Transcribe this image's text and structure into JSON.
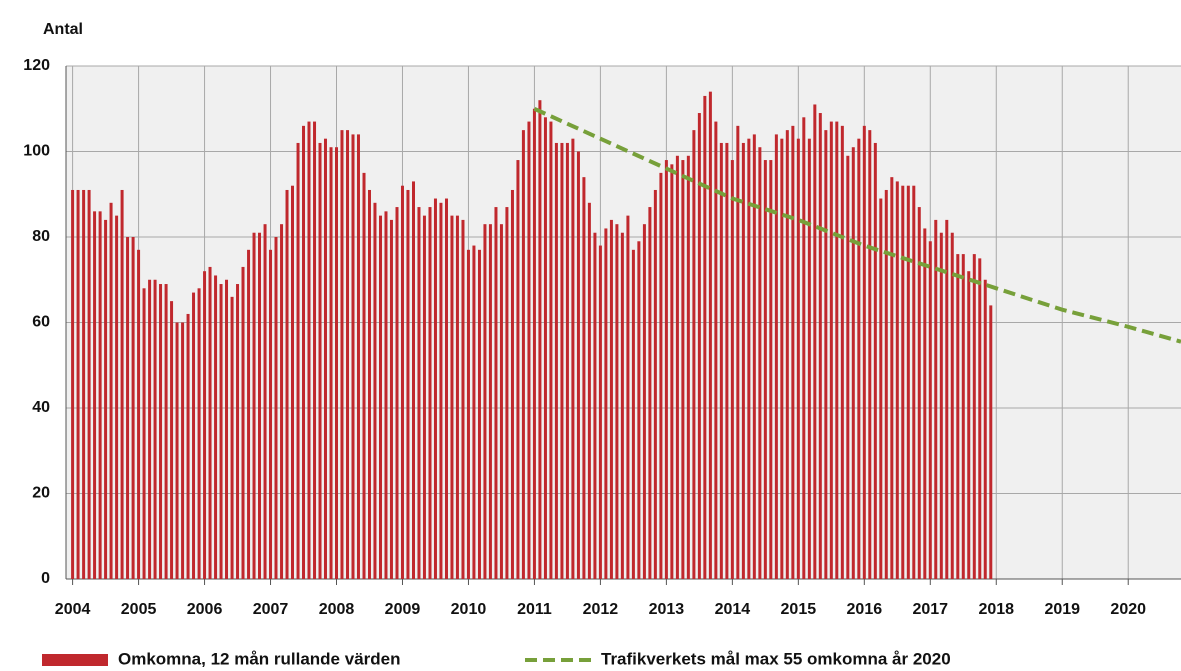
{
  "chart_data": {
    "type": "bar",
    "y_label": "Antal",
    "xlim": [
      2003.9,
      2020.8
    ],
    "xticks": [
      2004,
      2005,
      2006,
      2007,
      2008,
      2009,
      2010,
      2011,
      2012,
      2013,
      2014,
      2015,
      2016,
      2017,
      2018,
      2019,
      2020
    ],
    "ylim": [
      0,
      120
    ],
    "yticks": [
      0,
      20,
      40,
      60,
      80,
      100,
      120
    ],
    "grid": true,
    "legend": "bottom",
    "series": [
      {
        "name": "Omkomna, 12 mån rullande värden",
        "type": "bar",
        "color": "#c0282d",
        "x": [
          2004,
          2004.083,
          2004.167,
          2004.25,
          2004.333,
          2004.417,
          2004.5,
          2004.583,
          2004.667,
          2004.75,
          2004.833,
          2004.917,
          2005,
          2005.083,
          2005.167,
          2005.25,
          2005.333,
          2005.417,
          2005.5,
          2005.583,
          2005.667,
          2005.75,
          2005.833,
          2005.917,
          2006,
          2006.083,
          2006.167,
          2006.25,
          2006.333,
          2006.417,
          2006.5,
          2006.583,
          2006.667,
          2006.75,
          2006.833,
          2006.917,
          2007,
          2007.083,
          2007.167,
          2007.25,
          2007.333,
          2007.417,
          2007.5,
          2007.583,
          2007.667,
          2007.75,
          2007.833,
          2007.917,
          2008,
          2008.083,
          2008.167,
          2008.25,
          2008.333,
          2008.417,
          2008.5,
          2008.583,
          2008.667,
          2008.75,
          2008.833,
          2008.917,
          2009,
          2009.083,
          2009.167,
          2009.25,
          2009.333,
          2009.417,
          2009.5,
          2009.583,
          2009.667,
          2009.75,
          2009.833,
          2009.917,
          2010,
          2010.083,
          2010.167,
          2010.25,
          2010.333,
          2010.417,
          2010.5,
          2010.583,
          2010.667,
          2010.75,
          2010.833,
          2010.917,
          2011,
          2011.083,
          2011.167,
          2011.25,
          2011.333,
          2011.417,
          2011.5,
          2011.583,
          2011.667,
          2011.75,
          2011.833,
          2011.917,
          2012,
          2012.083,
          2012.167,
          2012.25,
          2012.333,
          2012.417,
          2012.5,
          2012.583,
          2012.667,
          2012.75,
          2012.833,
          2012.917,
          2013,
          2013.083,
          2013.167,
          2013.25,
          2013.333,
          2013.417,
          2013.5,
          2013.583,
          2013.667,
          2013.75,
          2013.833,
          2013.917,
          2014,
          2014.083,
          2014.167,
          2014.25,
          2014.333,
          2014.417,
          2014.5,
          2014.583,
          2014.667,
          2014.75,
          2014.833,
          2014.917,
          2015,
          2015.083,
          2015.167,
          2015.25,
          2015.333,
          2015.417,
          2015.5,
          2015.583,
          2015.667,
          2015.75,
          2015.833,
          2015.917,
          2016,
          2016.083,
          2016.167,
          2016.25,
          2016.333,
          2016.417,
          2016.5,
          2016.583,
          2016.667,
          2016.75,
          2016.833,
          2016.917,
          2017,
          2017.083,
          2017.167,
          2017.25,
          2017.333,
          2017.417,
          2017.5,
          2017.583,
          2017.667,
          2017.75,
          2017.833,
          2017.917
        ],
        "values": [
          91,
          91,
          91,
          91,
          86,
          86,
          84,
          88,
          85,
          91,
          80,
          80,
          77,
          68,
          70,
          70,
          69,
          69,
          65,
          60,
          60,
          62,
          67,
          68,
          72,
          73,
          71,
          69,
          70,
          66,
          69,
          73,
          77,
          81,
          81,
          83,
          77,
          80,
          83,
          91,
          92,
          102,
          106,
          107,
          107,
          102,
          103,
          101,
          101,
          105,
          105,
          104,
          104,
          95,
          91,
          88,
          85,
          86,
          84,
          87,
          92,
          91,
          93,
          87,
          85,
          87,
          89,
          88,
          89,
          85,
          85,
          84,
          77,
          78,
          77,
          83,
          83,
          87,
          83,
          87,
          91,
          98,
          105,
          107,
          110,
          112,
          108,
          107,
          102,
          102,
          102,
          103,
          100,
          94,
          88,
          81,
          78,
          82,
          84,
          83,
          81,
          85,
          77,
          79,
          83,
          87,
          91,
          95,
          98,
          97,
          99,
          98,
          99,
          105,
          109,
          113,
          114,
          107,
          102,
          102,
          98,
          106,
          102,
          103,
          104,
          101,
          98,
          98,
          104,
          103,
          105,
          106,
          103,
          108,
          103,
          111,
          109,
          105,
          107,
          107,
          106,
          99,
          101,
          103,
          106,
          105,
          102,
          89,
          91,
          94,
          93,
          92,
          92,
          92,
          87,
          82,
          79,
          84,
          81,
          84,
          81,
          76,
          76,
          72,
          76,
          75,
          70,
          64
        ]
      },
      {
        "name": "Trafikverkets mål max 55 omkomna år 2020",
        "type": "line",
        "dashed": true,
        "color": "#77a03a",
        "x": [
          2011,
          2012,
          2013,
          2014,
          2015,
          2016,
          2017,
          2018,
          2019,
          2020,
          2020.8
        ],
        "values": [
          110,
          103,
          96,
          89,
          84,
          78,
          73,
          68,
          63,
          59,
          55.5
        ]
      }
    ]
  }
}
